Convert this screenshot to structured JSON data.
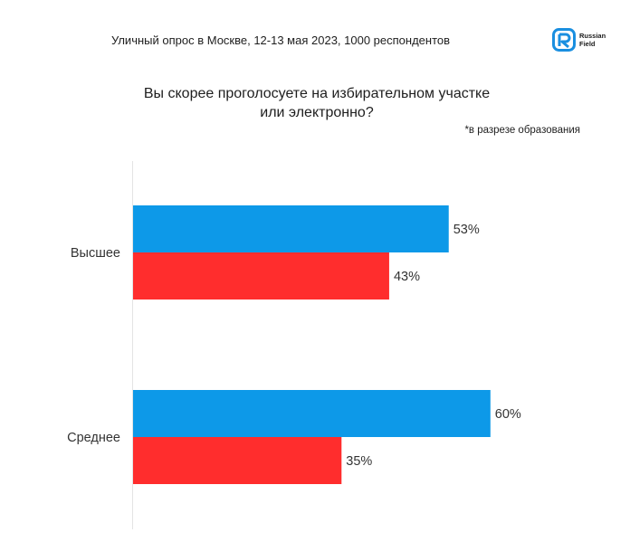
{
  "header": {
    "title": "Уличный опрос в Москве, 12-13 мая 2023, 1000 респондентов",
    "logo_line1": "Russian",
    "logo_line2": "Field"
  },
  "question": {
    "line1": "Вы скорее проголосуете на избирательном участке",
    "line2": "или электронно?"
  },
  "note": "*в разрезе образования",
  "colors": {
    "series1": "#0d99e8",
    "series2": "#ff2d2d",
    "logo": "#1a8fe0"
  },
  "chart_data": {
    "type": "bar",
    "orientation": "horizontal",
    "categories": [
      "Высшее",
      "Среднее"
    ],
    "series": [
      {
        "values": [
          53,
          60
        ],
        "labels": [
          "53%",
          "60%"
        ],
        "color": "#0d99e8"
      },
      {
        "values": [
          43,
          35
        ],
        "labels": [
          "43%",
          "35%"
        ],
        "color": "#ff2d2d"
      }
    ],
    "xlim": [
      0,
      100
    ],
    "grid": false,
    "legend": "none"
  }
}
